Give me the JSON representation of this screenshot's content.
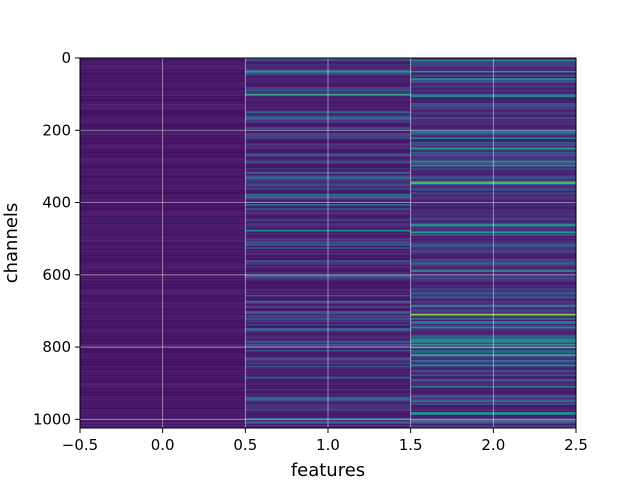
{
  "chart_data": {
    "type": "heatmap",
    "title": "",
    "xlabel": "features",
    "ylabel": "channels",
    "xlim": [
      -0.5,
      2.5
    ],
    "ylim": [
      1024,
      0
    ],
    "y_inverted": true,
    "grid": true,
    "colormap": "viridis",
    "n_rows": 1024,
    "n_cols": 3,
    "x_ticks": [
      -0.5,
      0.0,
      0.5,
      1.0,
      1.5,
      2.0,
      2.5
    ],
    "x_tick_labels": [
      "−0.5",
      "0.0",
      "0.5",
      "1.0",
      "1.5",
      "2.0",
      "2.5"
    ],
    "y_ticks": [
      0,
      200,
      400,
      600,
      800,
      1000
    ],
    "y_tick_labels": [
      "0",
      "200",
      "400",
      "600",
      "800",
      "1000"
    ],
    "columns": [
      {
        "feature": 0,
        "description": "uniform low values, mostly dark purple"
      },
      {
        "feature": 1,
        "description": "low values with sparse brighter blue/teal streaks"
      },
      {
        "feature": 2,
        "description": "higher variance, many teal/green streaks"
      }
    ],
    "highlights": [
      {
        "feature": 1,
        "channel": 38,
        "value": 0.55
      },
      {
        "feature": 1,
        "channel": 100,
        "value": 0.6
      },
      {
        "feature": 1,
        "channel": 478,
        "value": 0.5
      },
      {
        "feature": 1,
        "channel": 600,
        "value": 0.4
      },
      {
        "feature": 2,
        "channel": 250,
        "value": 0.55
      },
      {
        "feature": 2,
        "channel": 345,
        "value": 0.75
      },
      {
        "feature": 2,
        "channel": 480,
        "value": 0.6
      },
      {
        "feature": 2,
        "channel": 590,
        "value": 0.5
      },
      {
        "feature": 2,
        "channel": 708,
        "value": 0.85
      },
      {
        "feature": 2,
        "channel": 820,
        "value": 0.65
      },
      {
        "feature": 2,
        "channel": 950,
        "value": 0.45
      }
    ]
  }
}
